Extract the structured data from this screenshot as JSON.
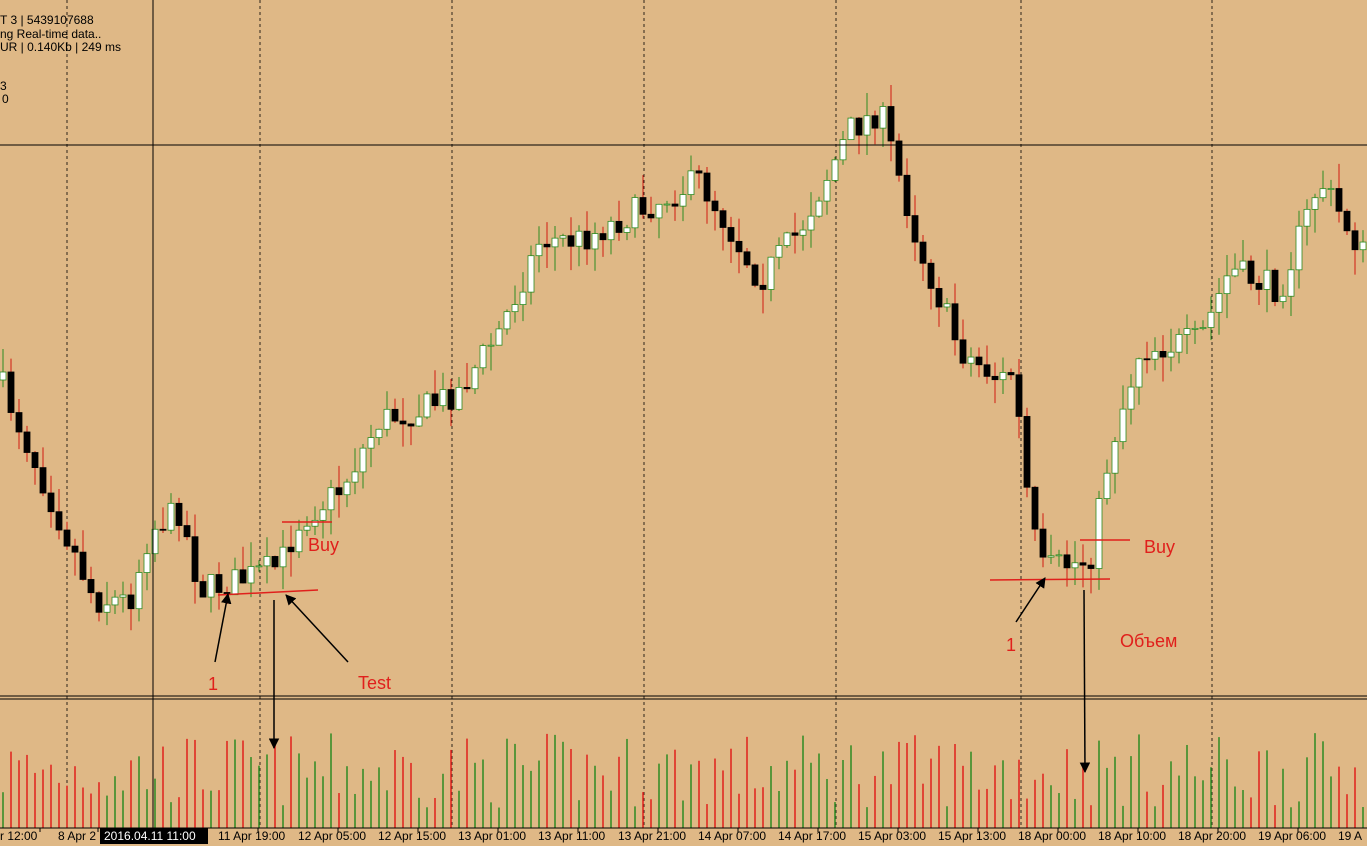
{
  "header": {
    "lines": [
      "T 3 | 5439107688",
      "ng Real-time data..",
      "UR | 0.140Kb | 249 ms",
      "3",
      "0"
    ]
  },
  "time_axis": {
    "labels": [
      "r 12:00",
      "8 Apr 2",
      "11 Apr 19:00",
      "12 Apr 05:00",
      "12 Apr 15:00",
      "13 Apr 01:00",
      "13 Apr 11:00",
      "13 Apr 21:00",
      "14 Apr 07:00",
      "14 Apr 17:00",
      "15 Apr 03:00",
      "15 Apr 13:00",
      "18 Apr 00:00",
      "18 Apr 10:00",
      "18 Apr 20:00",
      "19 Apr 06:00",
      "19 A"
    ],
    "cursor_label": "2016.04.11 11:00"
  },
  "annotations": {
    "buy_left": "Buy",
    "one_left": "1",
    "test": "Test",
    "buy_right": "Buy",
    "one_right": "1",
    "volume": "Объем"
  }
}
